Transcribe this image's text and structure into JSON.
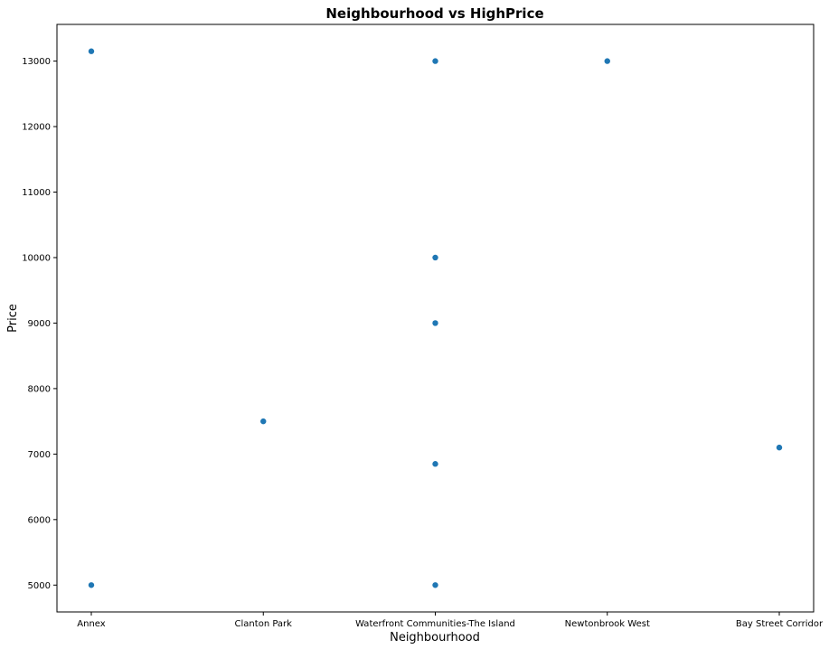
{
  "chart_data": {
    "type": "scatter",
    "title": "Neighbourhood vs HighPrice",
    "xlabel": "Neighbourhood",
    "ylabel": "Price",
    "categories": [
      "Annex",
      "Clanton Park",
      "Waterfront Communities-The Island",
      "Newtonbrook West",
      "Bay Street Corridor"
    ],
    "points": [
      {
        "x": "Annex",
        "y": 13150
      },
      {
        "x": "Annex",
        "y": 5000
      },
      {
        "x": "Clanton Park",
        "y": 7500
      },
      {
        "x": "Waterfront Communities-The Island",
        "y": 13000
      },
      {
        "x": "Waterfront Communities-The Island",
        "y": 10000
      },
      {
        "x": "Waterfront Communities-The Island",
        "y": 9000
      },
      {
        "x": "Waterfront Communities-The Island",
        "y": 6850
      },
      {
        "x": "Waterfront Communities-The Island",
        "y": 5000
      },
      {
        "x": "Newtonbrook West",
        "y": 13000
      },
      {
        "x": "Bay Street Corridor",
        "y": 7100
      }
    ],
    "yticks": [
      5000,
      6000,
      7000,
      8000,
      9000,
      10000,
      11000,
      12000,
      13000
    ],
    "ylim": [
      4590,
      13560
    ],
    "grid": false,
    "legend": "none",
    "marker_color": "#1f77b4"
  }
}
